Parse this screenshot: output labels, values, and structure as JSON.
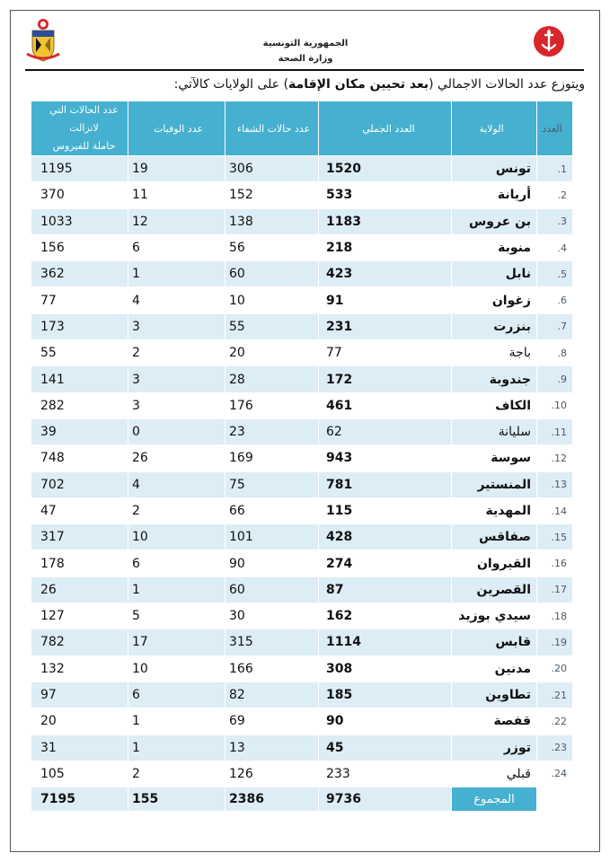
{
  "header": {
    "ministry_line1": "الجمهورية التونسية",
    "ministry_line2": "وزارة الصحة"
  },
  "intro": {
    "part1": "ويتوزع عدد الحالات الاجمالي (",
    "bold": "بعد تحيين مكان الإقامة",
    "part2": ") على الولايات كالآتي:"
  },
  "table": {
    "headers": {
      "index": "العدد",
      "governorate": "الولاية",
      "total": "العدد الجملي",
      "recovered": "عدد حالات الشفاء",
      "deaths": "عدد الوفيات",
      "active_line1": "عدد الحالات التي لاتزالت",
      "active_line2": "حاملة للفيروس"
    },
    "rows": [
      {
        "index": "1.",
        "governorate": "تونس",
        "total": "1520",
        "recovered": "306",
        "deaths": "19",
        "active": "1195",
        "bold": true
      },
      {
        "index": "2.",
        "governorate": "أريانة",
        "total": "533",
        "recovered": "152",
        "deaths": "11",
        "active": "370",
        "bold": true
      },
      {
        "index": "3.",
        "governorate": "بن عروس",
        "total": "1183",
        "recovered": "138",
        "deaths": "12",
        "active": "1033",
        "bold": true
      },
      {
        "index": "4.",
        "governorate": "منوبة",
        "total": "218",
        "recovered": "56",
        "deaths": "6",
        "active": "156",
        "bold": true
      },
      {
        "index": "5.",
        "governorate": "نابل",
        "total": "423",
        "recovered": "60",
        "deaths": "1",
        "active": "362",
        "bold": true
      },
      {
        "index": "6.",
        "governorate": "زغوان",
        "total": "91",
        "recovered": "10",
        "deaths": "4",
        "active": "77",
        "bold": true
      },
      {
        "index": "7.",
        "governorate": "بنزرت",
        "total": "231",
        "recovered": "55",
        "deaths": "3",
        "active": "173",
        "bold": true
      },
      {
        "index": "8.",
        "governorate": "باجة",
        "total": "77",
        "recovered": "20",
        "deaths": "2",
        "active": "55",
        "bold": false
      },
      {
        "index": "9.",
        "governorate": "جندوبة",
        "total": "172",
        "recovered": "28",
        "deaths": "3",
        "active": "141",
        "bold": true
      },
      {
        "index": "10.",
        "governorate": "الكاف",
        "total": "461",
        "recovered": "176",
        "deaths": "3",
        "active": "282",
        "bold": true
      },
      {
        "index": "11.",
        "governorate": "سليانة",
        "total": "62",
        "recovered": "23",
        "deaths": "0",
        "active": "39",
        "bold": false
      },
      {
        "index": "12.",
        "governorate": "سوسة",
        "total": "943",
        "recovered": "169",
        "deaths": "26",
        "active": "748",
        "bold": true
      },
      {
        "index": "13.",
        "governorate": "المنستير",
        "total": "781",
        "recovered": "75",
        "deaths": "4",
        "active": "702",
        "bold": true
      },
      {
        "index": "14.",
        "governorate": "المهدية",
        "total": "115",
        "recovered": "66",
        "deaths": "2",
        "active": "47",
        "bold": true
      },
      {
        "index": "15.",
        "governorate": "صفاقس",
        "total": "428",
        "recovered": "101",
        "deaths": "10",
        "active": "317",
        "bold": true
      },
      {
        "index": "16.",
        "governorate": "القيروان",
        "total": "274",
        "recovered": "90",
        "deaths": "6",
        "active": "178",
        "bold": true
      },
      {
        "index": "17.",
        "governorate": "القصرين",
        "total": "87",
        "recovered": "60",
        "deaths": "1",
        "active": "26",
        "bold": true
      },
      {
        "index": "18.",
        "governorate": "سيدي بوزيد",
        "total": "162",
        "recovered": "30",
        "deaths": "5",
        "active": "127",
        "bold": true
      },
      {
        "index": "19.",
        "governorate": "قابس",
        "total": "1114",
        "recovered": "315",
        "deaths": "17",
        "active": "782",
        "bold": true
      },
      {
        "index": "20.",
        "governorate": "مدنين",
        "total": "308",
        "recovered": "166",
        "deaths": "10",
        "active": "132",
        "bold": true
      },
      {
        "index": "21.",
        "governorate": "تطاوين",
        "total": "185",
        "recovered": "82",
        "deaths": "6",
        "active": "97",
        "bold": true
      },
      {
        "index": "22.",
        "governorate": "قفصة",
        "total": "90",
        "recovered": "69",
        "deaths": "1",
        "active": "20",
        "bold": true
      },
      {
        "index": "23.",
        "governorate": "توزر",
        "total": "45",
        "recovered": "13",
        "deaths": "1",
        "active": "31",
        "bold": true
      },
      {
        "index": "24.",
        "governorate": "قبلي",
        "total": "233",
        "recovered": "126",
        "deaths": "2",
        "active": "105",
        "bold": false
      }
    ],
    "totals": {
      "label": "المجموع",
      "total": "9736",
      "recovered": "2386",
      "deaths": "155",
      "active": "7195"
    }
  },
  "colors": {
    "header_bg": "#45b0cf",
    "stripe": "#ddedf6"
  },
  "icons": {
    "emblem": "tunisia-coat-of-arms-icon",
    "logo": "ministry-anchor-crescent-logo"
  }
}
